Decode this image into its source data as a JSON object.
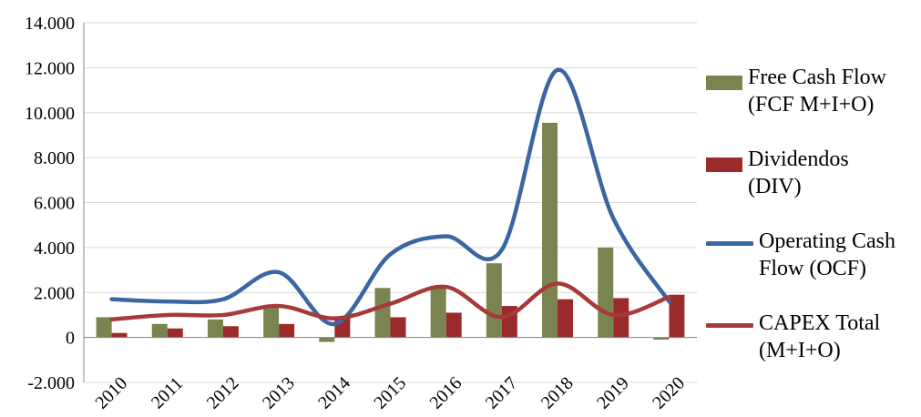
{
  "chart_data": {
    "type": "bar",
    "categories": [
      "2010",
      "2011",
      "2012",
      "2013",
      "2014",
      "2015",
      "2016",
      "2017",
      "2018",
      "2019",
      "2020"
    ],
    "ylim": [
      -2000,
      14000
    ],
    "yticks": [
      -2000,
      0,
      2000,
      4000,
      6000,
      8000,
      10000,
      12000,
      14000
    ],
    "ytick_labels": [
      "-2.000",
      "0",
      "2.000",
      "4.000",
      "6.000",
      "8.000",
      "10.000",
      "12.000",
      "14.000"
    ],
    "grid": "horizontal",
    "legend_position": "right",
    "series": [
      {
        "name": "Free Cash Flow (FCF M+I+O)",
        "type": "bar",
        "color": "#7a8450",
        "values": [
          900,
          600,
          800,
          1400,
          -200,
          2200,
          2300,
          3300,
          9550,
          4000,
          -100
        ]
      },
      {
        "name": "Dividendos (DIV)",
        "type": "bar",
        "color": "#9b2b2b",
        "values": [
          200,
          400,
          500,
          600,
          900,
          900,
          1100,
          1400,
          1700,
          1750,
          1900
        ]
      },
      {
        "name": "Operating Cash Flow (OCF)",
        "type": "line",
        "color": "#3a66a2",
        "values": [
          1700,
          1600,
          1700,
          2900,
          600,
          3700,
          4500,
          3900,
          11900,
          5300,
          1600
        ]
      },
      {
        "name": "CAPEX Total (M+I+O)",
        "type": "line",
        "color": "#a73a38",
        "values": [
          800,
          1000,
          1000,
          1400,
          850,
          1500,
          2250,
          900,
          2400,
          1000,
          1800
        ]
      }
    ],
    "legend_lines": [
      [
        "Free Cash Flow",
        "(FCF M+I+O)"
      ],
      [
        "Dividendos",
        "(DIV)"
      ],
      [
        "Operating Cash",
        "Flow (OCF)"
      ],
      [
        "CAPEX Total",
        "(M+I+O)"
      ]
    ]
  }
}
